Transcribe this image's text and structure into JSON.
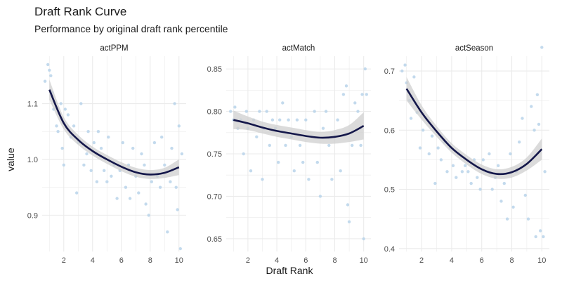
{
  "title": "Draft Rank Curve",
  "subtitle": "Performance by original draft rank percentile",
  "chart_data": {
    "type": "scatter",
    "xlabel": "Draft Rank",
    "ylabel": "value",
    "grid": true,
    "colors": {
      "points": "#b9d3ea",
      "smooth": "#14174a",
      "band": "#cfcfcf",
      "grid": "#ebebeb"
    },
    "panels": [
      {
        "name": "actPPM",
        "xlim": [
          0.5,
          10.5
        ],
        "ylim": [
          0.835,
          1.185
        ],
        "xticks": [
          2,
          4,
          6,
          8,
          10
        ],
        "yticks": [
          0.9,
          1.0,
          1.1
        ],
        "ytick_labels": [
          "0.9",
          "1.0",
          "1.1"
        ],
        "points": [
          [
            0.7,
            1.14
          ],
          [
            0.9,
            1.17
          ],
          [
            1.0,
            1.16
          ],
          [
            1.1,
            1.15
          ],
          [
            1.2,
            1.12
          ],
          [
            1.3,
            1.09
          ],
          [
            1.5,
            1.06
          ],
          [
            1.6,
            1.05
          ],
          [
            1.8,
            1.1
          ],
          [
            1.9,
            1.02
          ],
          [
            2.0,
            0.99
          ],
          [
            2.1,
            1.09
          ],
          [
            2.3,
            1.08
          ],
          [
            2.5,
            1.04
          ],
          [
            2.7,
            1.06
          ],
          [
            2.9,
            0.94
          ],
          [
            3.0,
            1.03
          ],
          [
            3.2,
            1.1
          ],
          [
            3.4,
            0.99
          ],
          [
            3.6,
            1.01
          ],
          [
            3.7,
            1.05
          ],
          [
            3.9,
            0.98
          ],
          [
            4.1,
            1.03
          ],
          [
            4.3,
            0.96
          ],
          [
            4.4,
            1.05
          ],
          [
            4.6,
            1.02
          ],
          [
            4.8,
            0.98
          ],
          [
            5.0,
            0.96
          ],
          [
            5.1,
            1.04
          ],
          [
            5.3,
            0.97
          ],
          [
            5.5,
            0.99
          ],
          [
            5.7,
            0.93
          ],
          [
            5.9,
            0.98
          ],
          [
            6.1,
            1.03
          ],
          [
            6.3,
            0.95
          ],
          [
            6.5,
            0.99
          ],
          [
            6.6,
            0.93
          ],
          [
            6.8,
            1.02
          ],
          [
            7.0,
            0.97
          ],
          [
            7.2,
            0.94
          ],
          [
            7.4,
            1.01
          ],
          [
            7.6,
            0.99
          ],
          [
            7.7,
            0.92
          ],
          [
            7.9,
            0.9
          ],
          [
            8.1,
            0.96
          ],
          [
            8.3,
            1.03
          ],
          [
            8.5,
            0.97
          ],
          [
            8.7,
            0.95
          ],
          [
            8.8,
            1.04
          ],
          [
            9.0,
            0.99
          ],
          [
            9.2,
            0.87
          ],
          [
            9.4,
            0.96
          ],
          [
            9.5,
            1.02
          ],
          [
            9.7,
            1.1
          ],
          [
            9.8,
            0.95
          ],
          [
            9.9,
            0.91
          ],
          [
            10.0,
            1.06
          ],
          [
            10.1,
            0.84
          ],
          [
            10.2,
            1.01
          ]
        ],
        "smooth": {
          "x": [
            1,
            2,
            3,
            4,
            5,
            6,
            7,
            8,
            9,
            10
          ],
          "y": [
            1.125,
            1.065,
            1.035,
            1.015,
            1.0,
            0.987,
            0.977,
            0.973,
            0.976,
            0.986
          ],
          "band": [
            0.018,
            0.011,
            0.009,
            0.008,
            0.008,
            0.008,
            0.008,
            0.008,
            0.009,
            0.014
          ]
        }
      },
      {
        "name": "actMatch",
        "xlim": [
          0.5,
          10.5
        ],
        "ylim": [
          0.635,
          0.865
        ],
        "xticks": [
          2,
          4,
          6,
          8,
          10
        ],
        "yticks": [
          0.65,
          0.7,
          0.75,
          0.8,
          0.85
        ],
        "ytick_labels": [
          "0.65",
          "0.70",
          "0.75",
          "0.80",
          "0.85"
        ],
        "points": [
          [
            0.8,
            0.8
          ],
          [
            1.0,
            0.79
          ],
          [
            1.1,
            0.805
          ],
          [
            1.3,
            0.78
          ],
          [
            1.5,
            0.79
          ],
          [
            1.7,
            0.75
          ],
          [
            1.9,
            0.8
          ],
          [
            2.0,
            0.78
          ],
          [
            2.2,
            0.73
          ],
          [
            2.4,
            0.79
          ],
          [
            2.6,
            0.77
          ],
          [
            2.8,
            0.8
          ],
          [
            3.0,
            0.72
          ],
          [
            3.1,
            0.78
          ],
          [
            3.3,
            0.8
          ],
          [
            3.5,
            0.76
          ],
          [
            3.7,
            0.79
          ],
          [
            3.9,
            0.78
          ],
          [
            4.1,
            0.74
          ],
          [
            4.2,
            0.79
          ],
          [
            4.4,
            0.81
          ],
          [
            4.6,
            0.76
          ],
          [
            4.8,
            0.79
          ],
          [
            5.0,
            0.77
          ],
          [
            5.2,
            0.73
          ],
          [
            5.4,
            0.79
          ],
          [
            5.6,
            0.76
          ],
          [
            5.8,
            0.74
          ],
          [
            6.0,
            0.79
          ],
          [
            6.2,
            0.72
          ],
          [
            6.4,
            0.77
          ],
          [
            6.6,
            0.8
          ],
          [
            6.8,
            0.74
          ],
          [
            7.0,
            0.7
          ],
          [
            7.2,
            0.78
          ],
          [
            7.4,
            0.8
          ],
          [
            7.6,
            0.76
          ],
          [
            7.8,
            0.72
          ],
          [
            8.0,
            0.77
          ],
          [
            8.2,
            0.79
          ],
          [
            8.4,
            0.73
          ],
          [
            8.6,
            0.82
          ],
          [
            8.8,
            0.83
          ],
          [
            8.9,
            0.69
          ],
          [
            9.0,
            0.67
          ],
          [
            9.2,
            0.76
          ],
          [
            9.4,
            0.81
          ],
          [
            9.6,
            0.8
          ],
          [
            9.8,
            0.76
          ],
          [
            9.9,
            0.82
          ],
          [
            10.0,
            0.65
          ],
          [
            10.1,
            0.85
          ],
          [
            10.2,
            0.82
          ]
        ],
        "smooth": {
          "x": [
            1,
            2,
            3,
            4,
            5,
            6,
            7,
            8,
            9,
            10
          ],
          "y": [
            0.79,
            0.786,
            0.781,
            0.777,
            0.774,
            0.771,
            0.769,
            0.77,
            0.774,
            0.783
          ],
          "band": [
            0.011,
            0.008,
            0.007,
            0.007,
            0.007,
            0.007,
            0.007,
            0.008,
            0.01,
            0.016
          ]
        }
      },
      {
        "name": "actSeason",
        "xlim": [
          0.5,
          10.5
        ],
        "ylim": [
          0.395,
          0.725
        ],
        "xticks": [
          2,
          4,
          6,
          8,
          10
        ],
        "yticks": [
          0.4,
          0.5,
          0.6,
          0.7
        ],
        "ytick_labels": [
          "0.4",
          "0.5",
          "0.6",
          "0.7"
        ],
        "points": [
          [
            0.7,
            0.7
          ],
          [
            0.9,
            0.71
          ],
          [
            1.0,
            0.68
          ],
          [
            1.2,
            0.65
          ],
          [
            1.3,
            0.62
          ],
          [
            1.5,
            0.69
          ],
          [
            1.7,
            0.63
          ],
          [
            1.9,
            0.57
          ],
          [
            2.1,
            0.6
          ],
          [
            2.3,
            0.62
          ],
          [
            2.5,
            0.56
          ],
          [
            2.7,
            0.59
          ],
          [
            2.9,
            0.51
          ],
          [
            3.1,
            0.57
          ],
          [
            3.3,
            0.55
          ],
          [
            3.5,
            0.58
          ],
          [
            3.7,
            0.53
          ],
          [
            3.9,
            0.57
          ],
          [
            4.1,
            0.54
          ],
          [
            4.3,
            0.52
          ],
          [
            4.5,
            0.56
          ],
          [
            4.7,
            0.53
          ],
          [
            4.9,
            0.54
          ],
          [
            5.1,
            0.53
          ],
          [
            5.3,
            0.51
          ],
          [
            5.5,
            0.55
          ],
          [
            5.7,
            0.52
          ],
          [
            5.9,
            0.5
          ],
          [
            6.1,
            0.55
          ],
          [
            6.3,
            0.53
          ],
          [
            6.5,
            0.56
          ],
          [
            6.7,
            0.5
          ],
          [
            6.9,
            0.52
          ],
          [
            7.1,
            0.54
          ],
          [
            7.3,
            0.48
          ],
          [
            7.5,
            0.51
          ],
          [
            7.7,
            0.45
          ],
          [
            7.9,
            0.56
          ],
          [
            8.1,
            0.47
          ],
          [
            8.3,
            0.53
          ],
          [
            8.5,
            0.58
          ],
          [
            8.7,
            0.62
          ],
          [
            8.9,
            0.49
          ],
          [
            9.1,
            0.45
          ],
          [
            9.3,
            0.64
          ],
          [
            9.5,
            0.6
          ],
          [
            9.6,
            0.42
          ],
          [
            9.7,
            0.66
          ],
          [
            9.8,
            0.61
          ],
          [
            9.9,
            0.43
          ],
          [
            10.0,
            0.74
          ],
          [
            10.1,
            0.42
          ],
          [
            10.2,
            0.53
          ]
        ],
        "smooth": {
          "x": [
            1,
            2,
            3,
            4,
            5,
            6,
            7,
            8,
            9,
            10
          ],
          "y": [
            0.67,
            0.63,
            0.598,
            0.57,
            0.55,
            0.534,
            0.526,
            0.529,
            0.543,
            0.568
          ],
          "band": [
            0.02,
            0.012,
            0.009,
            0.008,
            0.008,
            0.008,
            0.008,
            0.009,
            0.011,
            0.018
          ]
        }
      }
    ]
  }
}
